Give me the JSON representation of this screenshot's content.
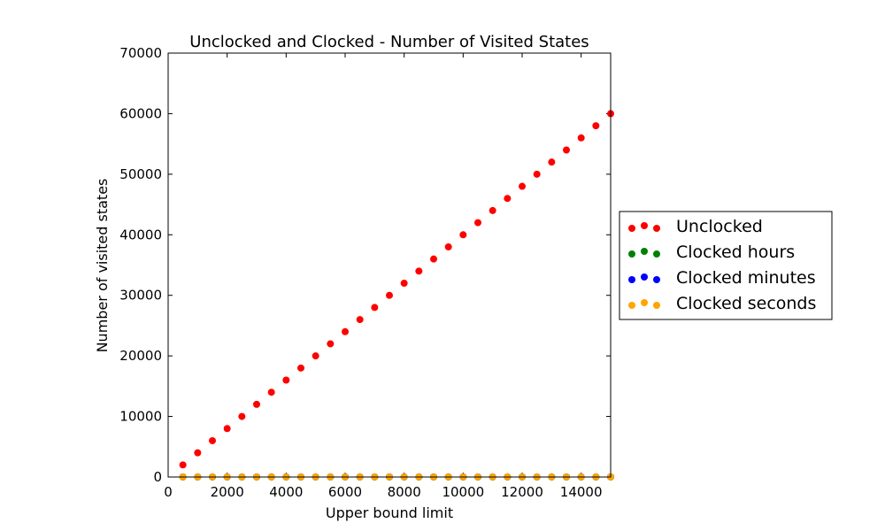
{
  "chart_data": {
    "type": "scatter",
    "title": "Unclocked and Clocked - Number of Visited States",
    "xlabel": "Upper bound limit",
    "ylabel": "Number of visited states",
    "xlim": [
      0,
      15000
    ],
    "ylim": [
      0,
      70000
    ],
    "xticks": [
      "0",
      "2000",
      "4000",
      "6000",
      "8000",
      "10000",
      "12000",
      "14000"
    ],
    "yticks": [
      "0",
      "10000",
      "20000",
      "30000",
      "40000",
      "50000",
      "60000",
      "70000"
    ],
    "grid": false,
    "legend_position": "outside-right",
    "x": [
      500,
      1000,
      1500,
      2000,
      2500,
      3000,
      3500,
      4000,
      4500,
      5000,
      5500,
      6000,
      6500,
      7000,
      7500,
      8000,
      8500,
      9000,
      9500,
      10000,
      10500,
      11000,
      11500,
      12000,
      12500,
      13000,
      13500,
      14000,
      14500,
      15000
    ],
    "series": [
      {
        "name": "Unclocked",
        "color": "#ff0000",
        "values": [
          2000,
          4000,
          6000,
          8000,
          10000,
          12000,
          14000,
          16000,
          18000,
          20000,
          22000,
          24000,
          26000,
          28000,
          30000,
          32000,
          34000,
          36000,
          38000,
          40000,
          42000,
          44000,
          46000,
          48000,
          50000,
          52000,
          54000,
          56000,
          58000,
          60000
        ]
      },
      {
        "name": "Clocked hours",
        "color": "#008000",
        "values": [
          10,
          10,
          10,
          10,
          10,
          10,
          10,
          10,
          10,
          10,
          10,
          10,
          10,
          10,
          10,
          10,
          10,
          10,
          10,
          10,
          10,
          10,
          10,
          10,
          10,
          10,
          10,
          10,
          10,
          10
        ]
      },
      {
        "name": "Clocked minutes",
        "color": "#0000ff",
        "values": [
          10,
          10,
          10,
          10,
          10,
          10,
          10,
          10,
          10,
          10,
          10,
          10,
          10,
          10,
          10,
          10,
          10,
          10,
          10,
          10,
          10,
          10,
          10,
          10,
          10,
          10,
          10,
          10,
          10,
          10
        ]
      },
      {
        "name": "Clocked seconds",
        "color": "#ffa500",
        "values": [
          10,
          10,
          10,
          10,
          10,
          10,
          10,
          10,
          10,
          10,
          10,
          10,
          10,
          10,
          10,
          10,
          10,
          10,
          10,
          10,
          10,
          10,
          10,
          10,
          10,
          10,
          10,
          10,
          10,
          10
        ]
      }
    ]
  }
}
